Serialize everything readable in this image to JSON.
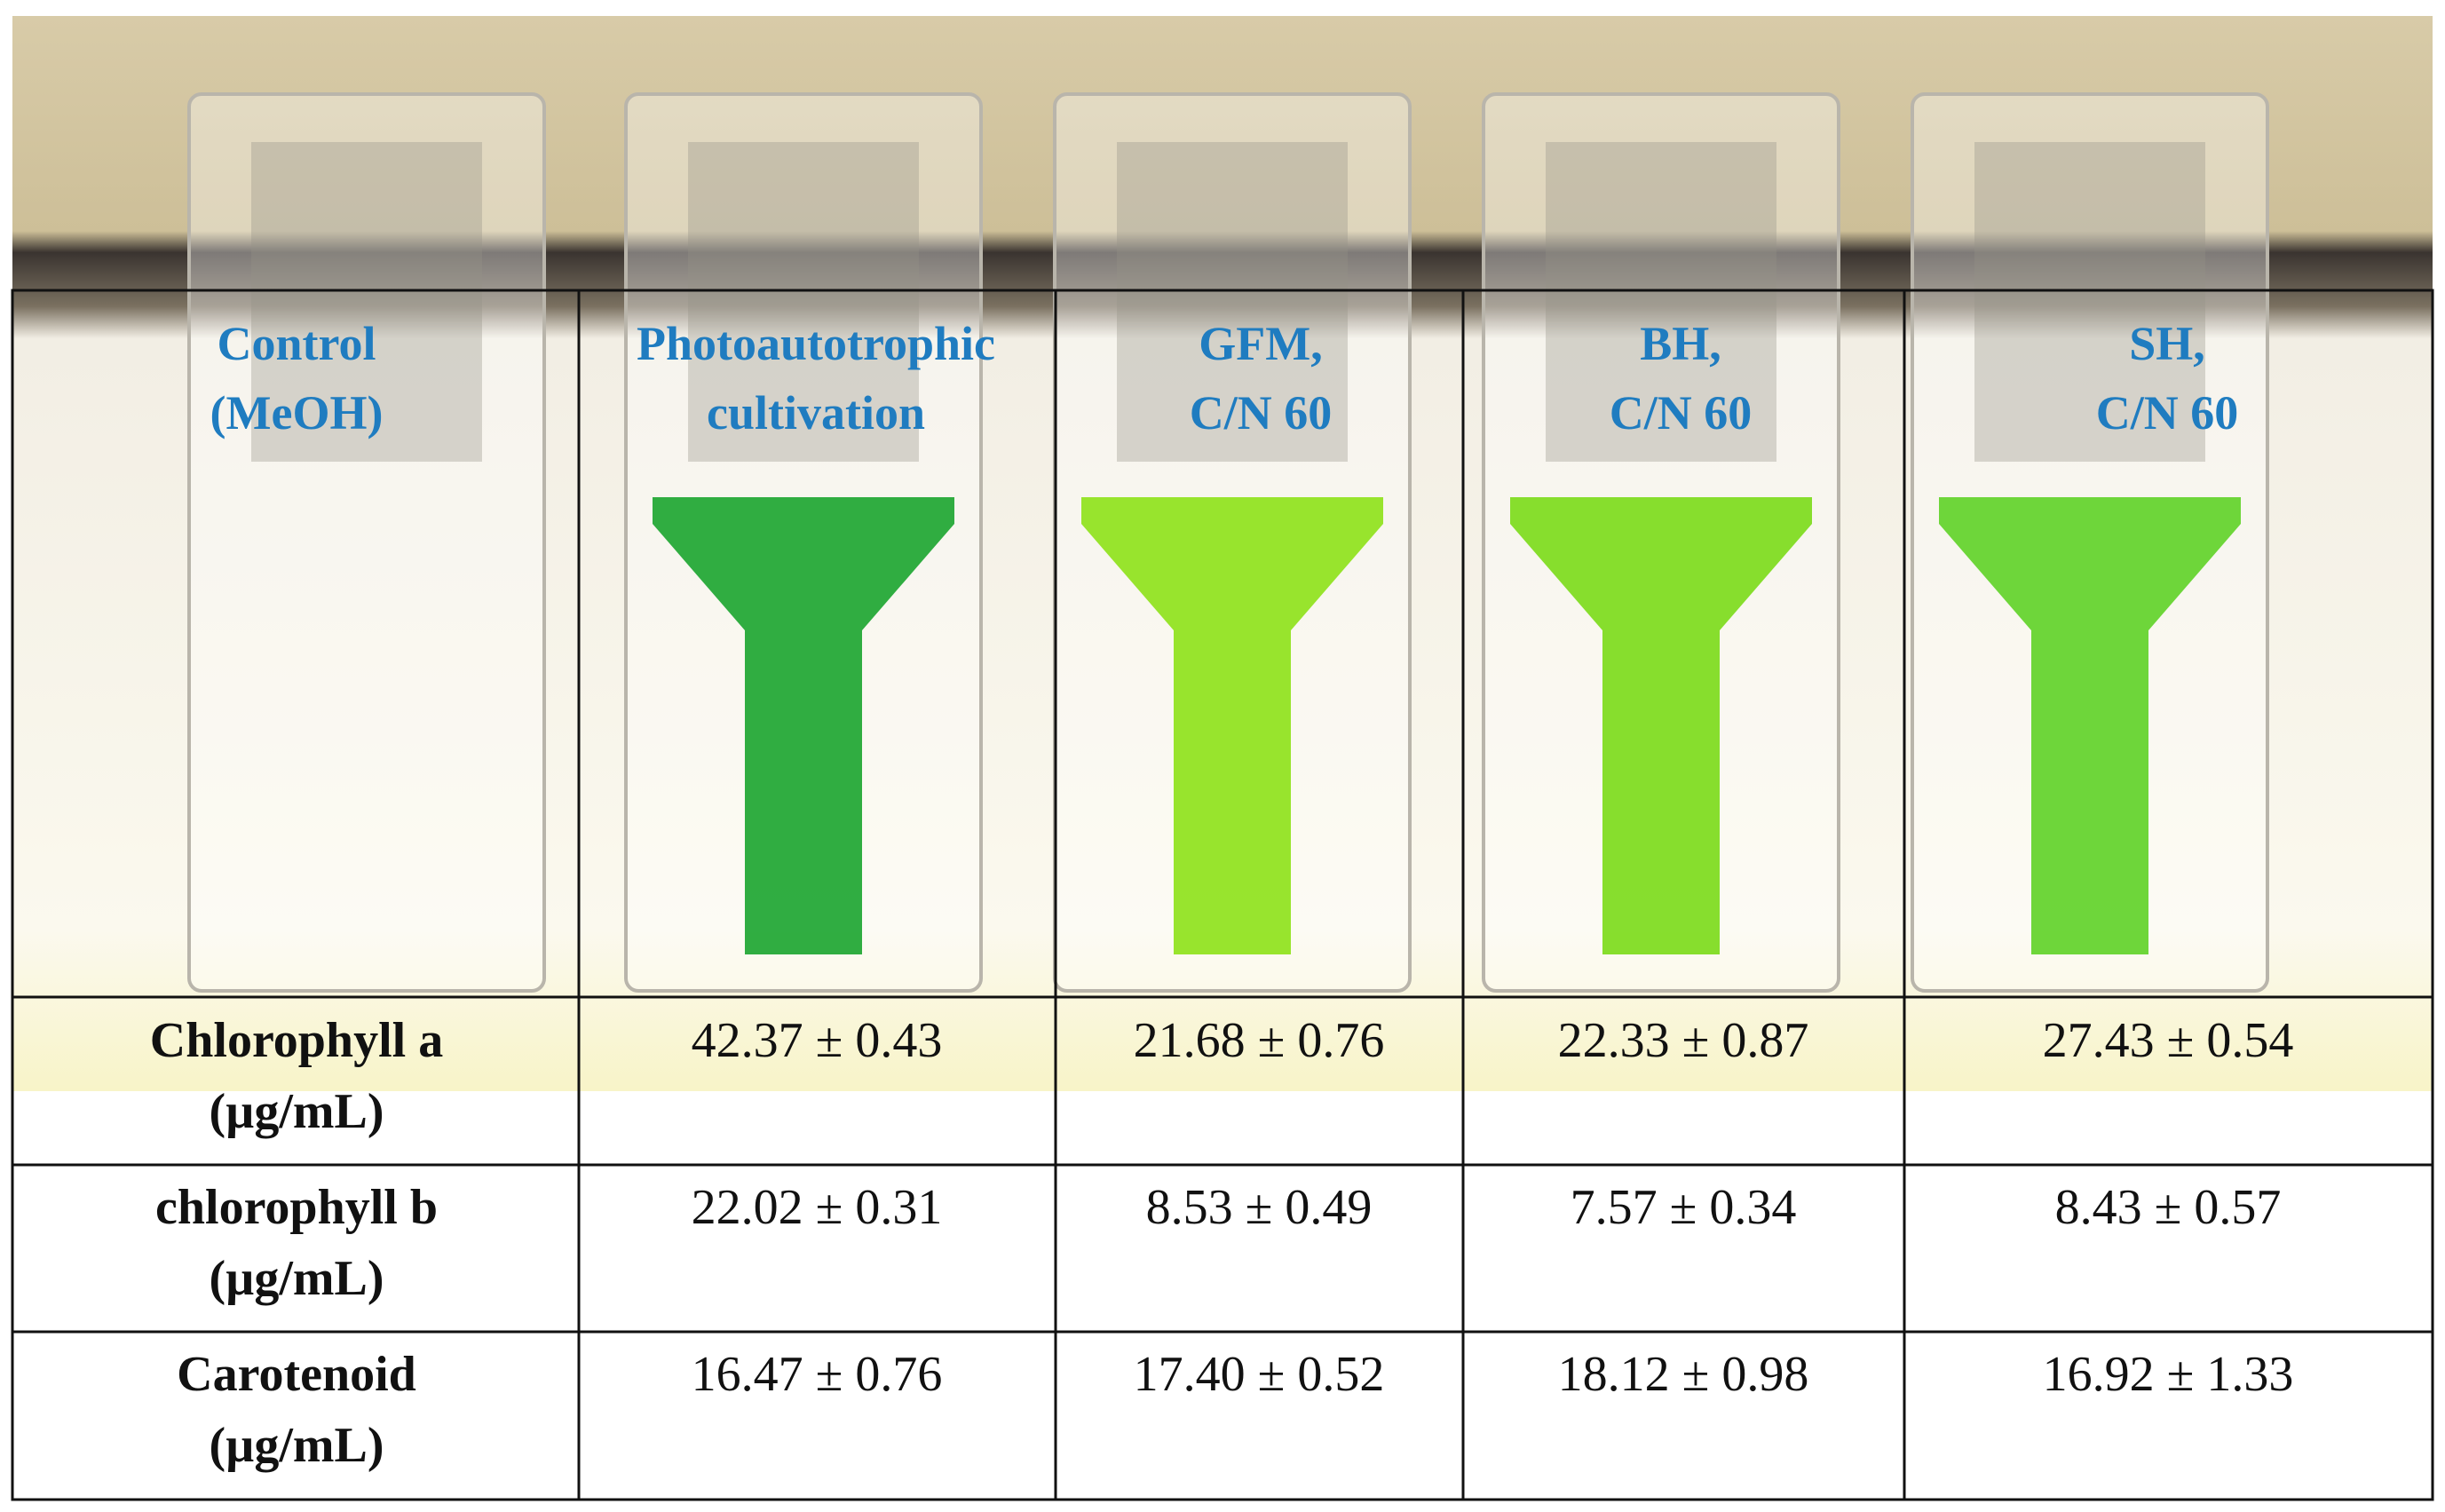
{
  "header": {
    "columns": [
      {
        "lines": [
          "Control",
          "(MeOH)"
        ]
      },
      {
        "lines": [
          "Photoautotrophic",
          "cultivation"
        ]
      },
      {
        "lines": [
          "GFM,",
          "C/N 60"
        ]
      },
      {
        "lines": [
          "BH,",
          "C/N 60"
        ]
      },
      {
        "lines": [
          "SH,",
          "C/N 60"
        ]
      }
    ]
  },
  "table": {
    "rows": [
      {
        "label": [
          "Chlorophyll a",
          "(µg/mL)"
        ],
        "values": [
          "42.37 ± 0.43",
          "21.68 ± 0.76",
          "22.33 ± 0.87",
          "27.43 ± 0.54"
        ]
      },
      {
        "label": [
          "chlorophyll b",
          "(µg/mL)"
        ],
        "values": [
          "22.02 ± 0.31",
          "8.53 ± 0.49",
          "7.57 ± 0.34",
          "8.43 ± 0.57"
        ]
      },
      {
        "label": [
          "Carotenoid",
          "(µg/mL)"
        ],
        "values": [
          "16.47 ± 0.76",
          "17.40 ± 0.52",
          "18.12 ± 0.98",
          "16.92 ± 1.33"
        ]
      }
    ]
  }
}
